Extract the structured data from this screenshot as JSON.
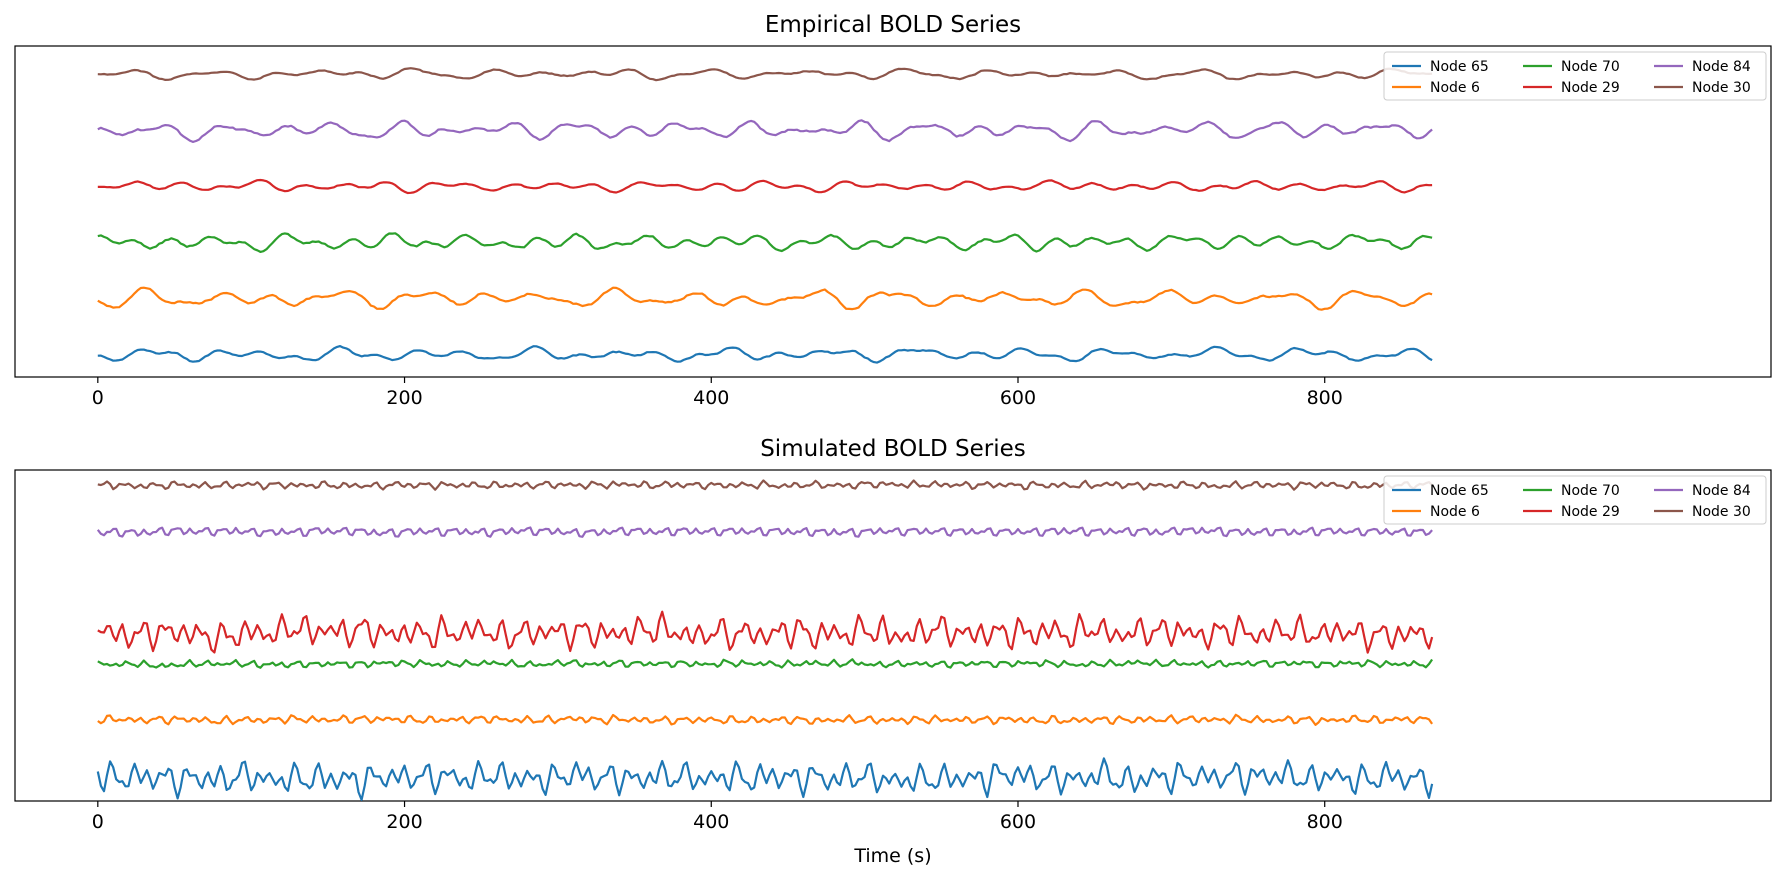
{
  "figure": {
    "xlabel": "Time (s)"
  },
  "chart_data": [
    {
      "type": "line",
      "title": "Empirical BOLD Series",
      "xlabel": "",
      "ylabel": "",
      "xlim": [
        -54,
        1091
      ],
      "x_ticks": [
        0,
        200,
        400,
        600,
        800
      ],
      "x_tick_labels": [
        "0",
        "200",
        "400",
        "600",
        "800"
      ],
      "y_ticks_visible": false,
      "grid": false,
      "legend_placement": "top-right",
      "legend_columns": 3,
      "x_sampling": {
        "start": 0,
        "end": 870,
        "step": 2
      },
      "series": [
        {
          "name": "Node 65",
          "color": "#1f77b4",
          "baseline": 0,
          "amplitude": 0.75,
          "seed": 11,
          "cycles": [
            26,
            41,
            63
          ]
        },
        {
          "name": "Node 6",
          "color": "#ff7f0e",
          "baseline": 5,
          "amplitude": 1.0,
          "seed": 23,
          "cycles": [
            28,
            44,
            61
          ]
        },
        {
          "name": "Node 70",
          "color": "#2ca02c",
          "baseline": 10,
          "amplitude": 0.85,
          "seed": 37,
          "cycles": [
            24,
            39,
            58
          ]
        },
        {
          "name": "Node 29",
          "color": "#d62728",
          "baseline": 15,
          "amplitude": 0.6,
          "seed": 41,
          "cycles": [
            27,
            43,
            66
          ]
        },
        {
          "name": "Node 84",
          "color": "#9467bd",
          "baseline": 20,
          "amplitude": 1.05,
          "seed": 53,
          "cycles": [
            25,
            38,
            57
          ]
        },
        {
          "name": "Node 30",
          "color": "#8c564b",
          "baseline": 25,
          "amplitude": 0.55,
          "seed": 67,
          "cycles": [
            29,
            46,
            64
          ]
        }
      ],
      "ylim": [
        -2,
        27.5
      ]
    },
    {
      "type": "line",
      "title": "Simulated BOLD Series",
      "xlabel": "Time (s)",
      "ylabel": "",
      "xlim": [
        -54,
        1091
      ],
      "x_ticks": [
        0,
        200,
        400,
        600,
        800
      ],
      "x_tick_labels": [
        "0",
        "200",
        "400",
        "600",
        "800"
      ],
      "y_ticks_visible": false,
      "grid": false,
      "legend_placement": "top-right",
      "legend_columns": 3,
      "x_sampling": {
        "start": 0,
        "end": 870,
        "step": 2
      },
      "series": [
        {
          "name": "Node 65",
          "color": "#1f77b4",
          "baseline": 0,
          "amplitude": 1.9,
          "seed": 71,
          "cycles": [
            8,
            12,
            17
          ]
        },
        {
          "name": "Node 6",
          "color": "#ff7f0e",
          "baseline": 5,
          "amplitude": 0.45,
          "seed": 83,
          "cycles": [
            7,
            11,
            15
          ]
        },
        {
          "name": "Node 70",
          "color": "#2ca02c",
          "baseline": 9.8,
          "amplitude": 0.4,
          "seed": 97,
          "cycles": [
            6,
            10,
            14
          ]
        },
        {
          "name": "Node 29",
          "color": "#d62728",
          "baseline": 12.5,
          "amplitude": 1.8,
          "seed": 101,
          "cycles": [
            8,
            13,
            18
          ]
        },
        {
          "name": "Node 84",
          "color": "#9467bd",
          "baseline": 21.2,
          "amplitude": 0.45,
          "seed": 113,
          "cycles": [
            6,
            10,
            15
          ]
        },
        {
          "name": "Node 30",
          "color": "#8c564b",
          "baseline": 25.2,
          "amplitude": 0.4,
          "seed": 127,
          "cycles": [
            7,
            11,
            16
          ]
        }
      ],
      "ylim": [
        -2,
        26.5
      ]
    }
  ]
}
